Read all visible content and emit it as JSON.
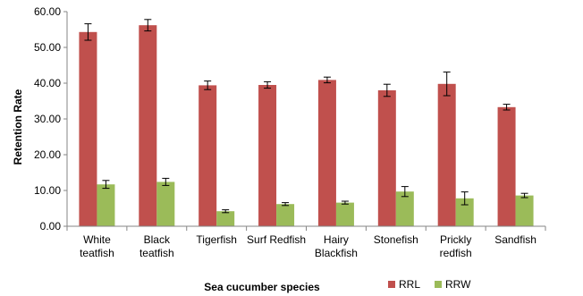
{
  "chart_data": {
    "type": "bar",
    "title": "",
    "xlabel": "Sea cucumber species",
    "ylabel": "Retention Rate",
    "ylim": [
      0,
      60
    ],
    "ytick_values": [
      0,
      10,
      20,
      30,
      40,
      50,
      60
    ],
    "ytick_labels": [
      "0.00",
      "10.00",
      "20.00",
      "30.00",
      "40.00",
      "50.00",
      "60.00"
    ],
    "grid": false,
    "legend_position": "bottom-right",
    "categories": [
      [
        "White",
        "teatfish"
      ],
      [
        "Black",
        "teatfish"
      ],
      [
        "Tigerfish"
      ],
      [
        "Surf Redfish"
      ],
      [
        "Hairy",
        "Blackfish"
      ],
      [
        "Stonefish"
      ],
      [
        "Prickly",
        "redfish"
      ],
      [
        "Sandfish"
      ]
    ],
    "series": [
      {
        "name": "RRL",
        "color": "#c0504d",
        "values": [
          54.3,
          56.2,
          39.4,
          39.5,
          40.9,
          38.0,
          39.8,
          33.3
        ],
        "errors": [
          2.3,
          1.6,
          1.2,
          0.9,
          0.8,
          1.7,
          3.3,
          0.8
        ]
      },
      {
        "name": "RRW",
        "color": "#9bbb59",
        "values": [
          11.7,
          12.4,
          4.2,
          6.2,
          6.6,
          9.7,
          7.8,
          8.6
        ],
        "errors": [
          1.1,
          1.0,
          0.4,
          0.4,
          0.4,
          1.4,
          1.8,
          0.6
        ]
      }
    ]
  }
}
